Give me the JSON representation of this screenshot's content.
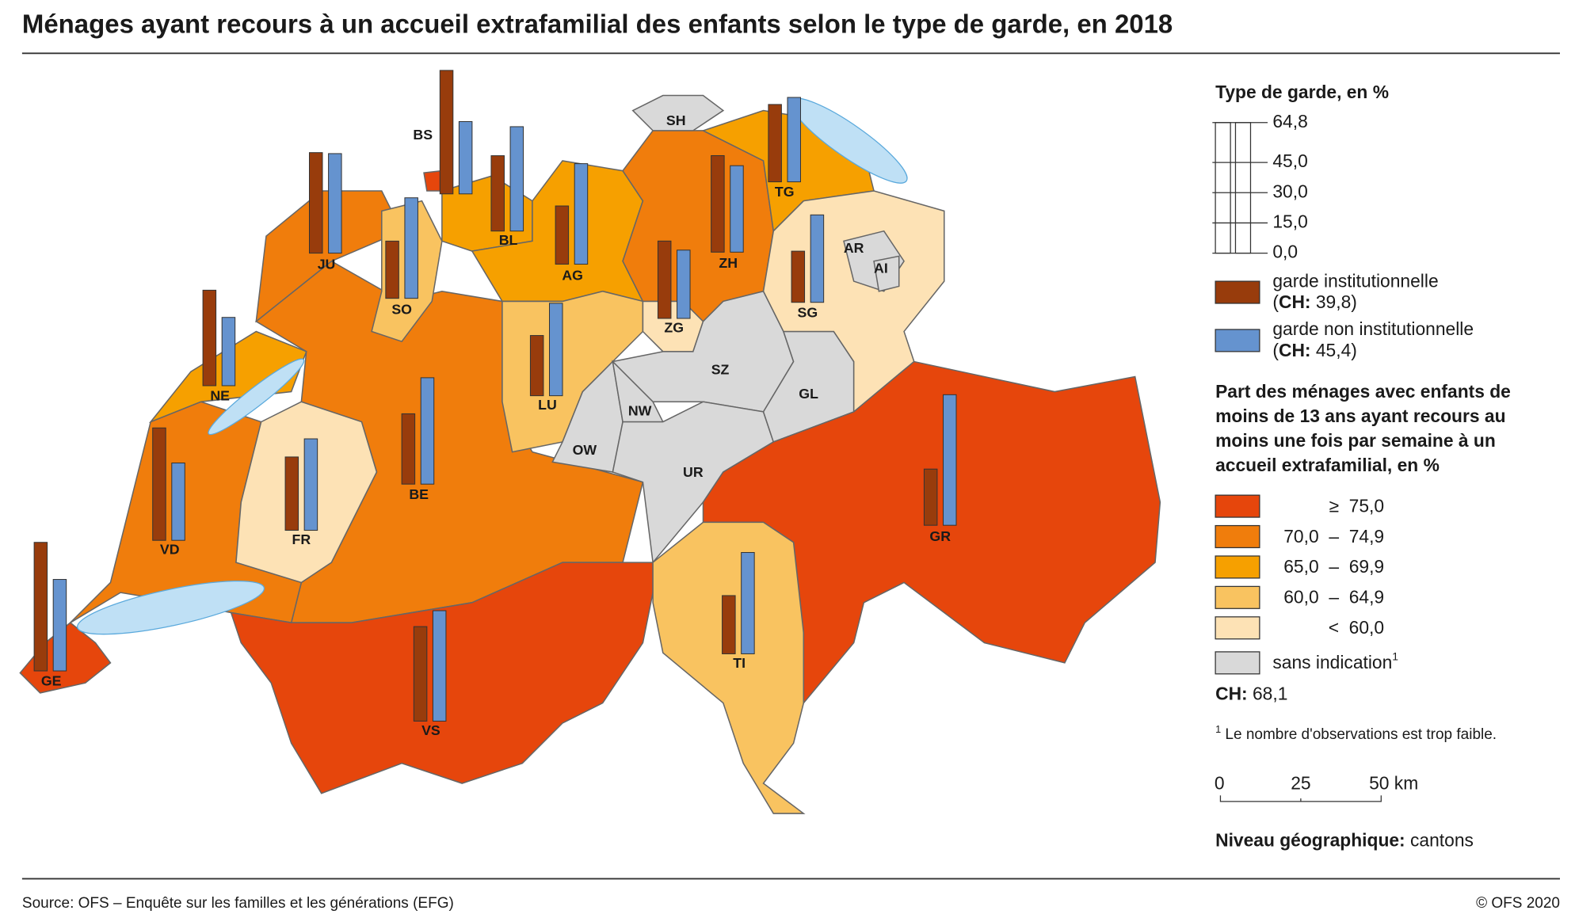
{
  "title": "Ménages ayant recours à un accueil extrafamilial des enfants selon le type de garde, en 2018",
  "source": "Source: OFS – Enquête sur les familles et les générations (EFG)",
  "copyright": "© OFS 2020",
  "chart_data": {
    "type": "map",
    "regions": [
      {
        "name": "BE",
        "color": "#f07d0c",
        "values": [
          34.9,
          52.8
        ]
      },
      {
        "name": "VD",
        "color": "#f07d0c",
        "values": [
          55.8,
          38.4
        ]
      },
      {
        "name": "GE",
        "color": "#e6460c",
        "values": [
          63.8,
          45.4
        ]
      },
      {
        "name": "NE",
        "color": "#f6a000",
        "values": [
          47.4,
          33.9
        ]
      },
      {
        "name": "JU",
        "color": "#f07d0c",
        "values": [
          49.9,
          49.4
        ]
      },
      {
        "name": "FR",
        "color": "#fde2b5",
        "values": [
          36.4,
          45.4
        ]
      },
      {
        "name": "VS",
        "color": "#e6460c",
        "values": [
          46.9,
          54.8
        ]
      },
      {
        "name": "SO",
        "color": "#f9c360",
        "values": [
          28.4,
          49.9
        ]
      },
      {
        "name": "BL",
        "color": "#f6a000",
        "values": [
          37.4,
          51.8
        ]
      },
      {
        "name": "BS",
        "color": "#e6460c",
        "values": [
          61.3,
          35.9
        ]
      },
      {
        "name": "AG",
        "color": "#f6a000",
        "values": [
          28.9,
          49.9
        ]
      },
      {
        "name": "ZH",
        "color": "#f07d0c",
        "values": [
          47.9,
          42.9
        ]
      },
      {
        "name": "SH",
        "color": "#d9d9d9"
      },
      {
        "name": "TG",
        "color": "#f6a000",
        "values": [
          38.4,
          41.9
        ]
      },
      {
        "name": "LU",
        "color": "#f9c360",
        "values": [
          29.9,
          45.9
        ]
      },
      {
        "name": "ZG",
        "color": "#fde2b5",
        "values": [
          38.4,
          33.9
        ]
      },
      {
        "name": "SZ",
        "color": "#d9d9d9"
      },
      {
        "name": "OW",
        "color": "#d9d9d9"
      },
      {
        "name": "NW",
        "color": "#d9d9d9"
      },
      {
        "name": "UR",
        "color": "#d9d9d9"
      },
      {
        "name": "GL",
        "color": "#d9d9d9"
      },
      {
        "name": "SG",
        "color": "#fde2b5",
        "values": [
          25.4,
          43.4
        ]
      },
      {
        "name": "AR",
        "color": "#d9d9d9"
      },
      {
        "name": "AI",
        "color": "#d9d9d9"
      },
      {
        "name": "GR",
        "color": "#e6460c",
        "values": [
          27.9,
          64.8
        ]
      },
      {
        "name": "TI",
        "color": "#f9c360",
        "values": [
          28.9,
          50.3
        ]
      }
    ],
    "bar_legend": {
      "title": "Type de garde, en %",
      "ylim": [
        0,
        64.8
      ],
      "yticks": [
        {
          "value": 64.8,
          "label": "64,8"
        },
        {
          "value": 45,
          "label": "45,0"
        },
        {
          "value": 30,
          "label": "30,0"
        },
        {
          "value": 15,
          "label": "15,0"
        },
        {
          "value": 0,
          "label": "0,0"
        }
      ]
    },
    "series": [
      {
        "name": "garde institutionnelle",
        "color": "#983c0c",
        "ch": {
          "value": 39.8,
          "label": "39,8"
        }
      },
      {
        "name": "garde non institutionnelle",
        "color": "#6593cf",
        "ch": {
          "value": 45.4,
          "label": "45,4"
        }
      }
    ],
    "ch_label": "CH:",
    "color_legend": {
      "title_lines": [
        "Part des ménages avec enfants de",
        "moins de 13 ans ayant recours au",
        "moins une fois par semaine à un",
        "accueil extrafamilial, en %"
      ],
      "classes": [
        {
          "color": "#e6460c",
          "label": "≥  75,0"
        },
        {
          "color": "#f07d0c",
          "label": "70,0  –  74,9"
        },
        {
          "color": "#f6a000",
          "label": "65,0  –  69,9"
        },
        {
          "color": "#f9c360",
          "label": "60,0  –  64,9"
        },
        {
          "color": "#fde2b5",
          "label": "<  60,0"
        }
      ],
      "missing": {
        "color": "#d9d9d9",
        "label": "sans indication",
        "note": "1"
      },
      "ch": {
        "value": 68.1,
        "label": "68,1"
      }
    },
    "footnote_mark": "1",
    "footnote": "Le nombre d'observations est trop faible.",
    "scale_bar": [
      "0",
      "25",
      "50 km"
    ],
    "level_label": "Niveau géographique:",
    "level": "cantons"
  }
}
